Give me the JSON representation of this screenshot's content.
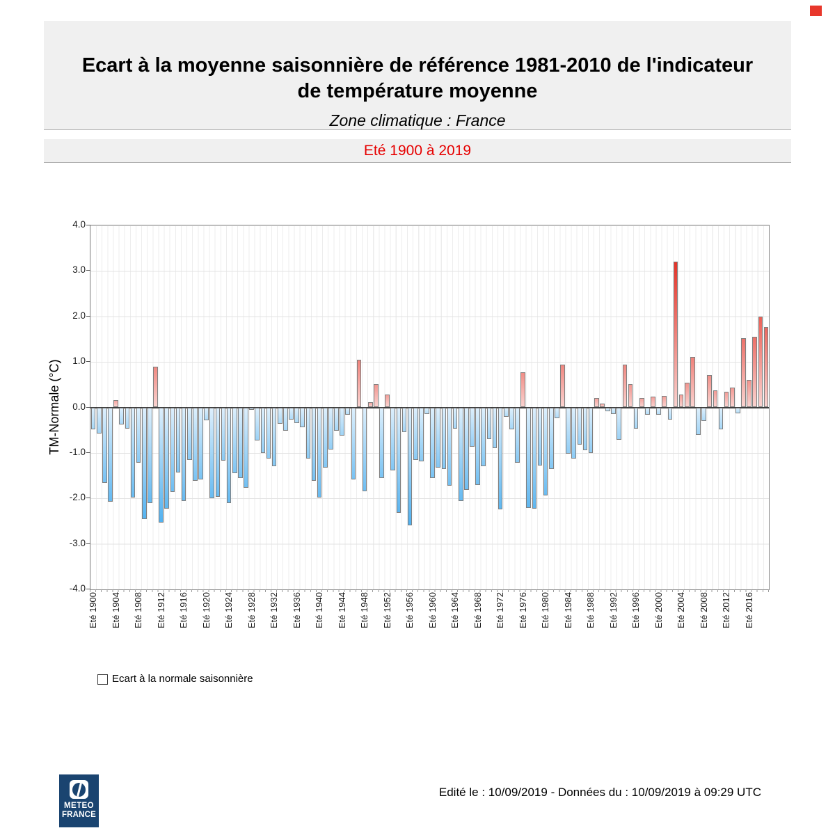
{
  "header": {
    "title_line1": "Ecart à la moyenne saisonnière de référence 1981-2010 de l'indicateur",
    "title_line2": "de température moyenne",
    "subtitle": "Zone climatique : France",
    "period_label": "Eté 1900 à 2019"
  },
  "legend": {
    "label": "Ecart à la normale saisonnière"
  },
  "footer": {
    "edited_text": "Edité le : 10/09/2019 - Données du : 10/09/2019 à 09:29 UTC",
    "logo_line1": "METEO",
    "logo_line2": "FRANCE"
  },
  "colors": {
    "period_text": "#e60000",
    "corner_mark": "#e8372b",
    "negative_light": "#ddeffc",
    "negative_deep": "#4fb0ef",
    "positive_light": "#fad2cf",
    "positive_deep": "#e53328",
    "logo_bg": "#1a4470"
  },
  "chart_data": {
    "type": "bar",
    "title": "Ecart à la moyenne saisonnière de référence 1981-2010 de l'indicateur de température moyenne — Zone climatique : France — Eté 1900 à 2019",
    "ylabel": "TM-Normale (°C)",
    "ylim": [
      -4.0,
      4.0
    ],
    "grid": true,
    "legend_position": "bottom-left",
    "series_name": "Ecart à la normale saisonnière",
    "y_ticks": [
      "4.0",
      "3.0",
      "2.0",
      "1.0",
      "0.0",
      "-1.0",
      "-2.0",
      "-3.0",
      "-4.0"
    ],
    "y_tick_values": [
      4,
      3,
      2,
      1,
      0,
      -1,
      -2,
      -3,
      -4
    ],
    "start_year": 1900,
    "end_year": 2019,
    "x_tick_step": 4,
    "x_tick_labels": [
      "Eté 1900",
      "Eté 1904",
      "Eté 1908",
      "Eté 1912",
      "Eté 1916",
      "Eté 1920",
      "Eté 1924",
      "Eté 1928",
      "Eté 1932",
      "Eté 1936",
      "Eté 1940",
      "Eté 1944",
      "Eté 1948",
      "Eté 1952",
      "Eté 1956",
      "Eté 1960",
      "Eté 1964",
      "Eté 1968",
      "Eté 1972",
      "Eté 1976",
      "Eté 1980",
      "Eté 1984",
      "Eté 1988",
      "Eté 1992",
      "Eté 1996",
      "Eté 2000",
      "Eté 2004",
      "Eté 2008",
      "Eté 2012",
      "Eté 2016"
    ],
    "values": [
      -0.48,
      -0.57,
      -1.66,
      -2.08,
      0.16,
      -0.38,
      -0.46,
      -1.98,
      -1.21,
      -2.45,
      -2.1,
      0.89,
      -2.53,
      -2.22,
      -1.86,
      -1.43,
      -2.05,
      -1.15,
      -1.61,
      -1.58,
      -0.28,
      -1.99,
      -1.96,
      -1.17,
      -2.1,
      -1.45,
      -1.55,
      -1.76,
      -0.05,
      -0.72,
      -1.0,
      -1.12,
      -1.3,
      -0.36,
      -0.51,
      -0.27,
      -0.35,
      -0.43,
      -1.13,
      -1.62,
      -1.98,
      -1.33,
      -0.93,
      -0.51,
      -0.62,
      -0.16,
      -1.59,
      1.05,
      -1.85,
      0.12,
      0.51,
      -1.55,
      0.28,
      -1.38,
      -2.31,
      -0.54,
      -2.6,
      -1.16,
      -1.19,
      -0.14,
      -1.56,
      -1.32,
      -1.35,
      -1.72,
      -0.46,
      -2.06,
      -1.81,
      -0.87,
      -1.71,
      -1.3,
      -0.69,
      -0.89,
      -2.24,
      -0.2,
      -0.48,
      -1.22,
      0.77,
      -2.21,
      -2.22,
      -1.28,
      -1.94,
      -1.35,
      -0.23,
      0.94,
      -1.02,
      -1.12,
      -0.82,
      -0.94,
      -1.0,
      0.2,
      0.09,
      -0.08,
      -0.15,
      -0.71,
      0.94,
      0.52,
      -0.47,
      0.2,
      -0.16,
      0.24,
      -0.16,
      0.26,
      -0.27,
      3.2,
      0.28,
      0.55,
      1.11,
      -0.61,
      -0.3,
      0.71,
      0.37,
      -0.48,
      0.35,
      0.43,
      -0.13,
      1.52,
      0.61,
      1.56,
      1.99,
      1.77
    ]
  }
}
